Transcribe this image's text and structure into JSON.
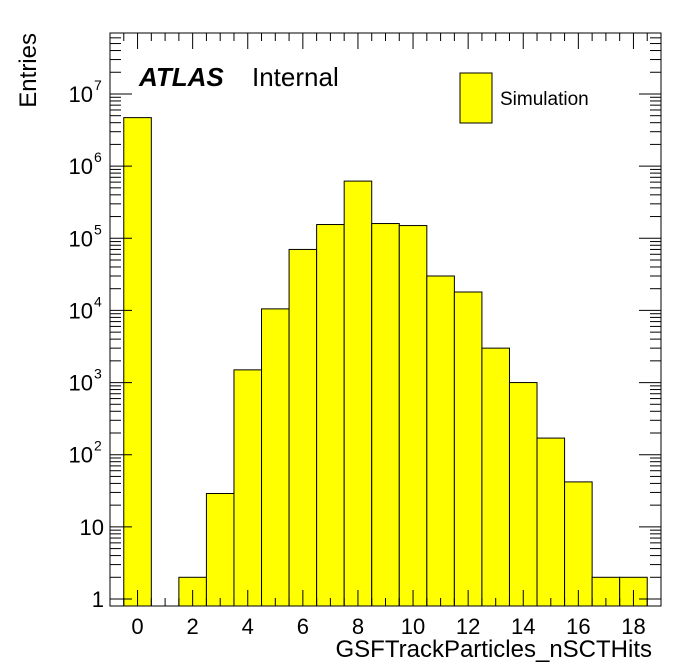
{
  "chart_data": {
    "type": "bar",
    "style": "histogram",
    "xlabel": "GSFTrackParticles_nSCTHits",
    "ylabel": "Entries",
    "xlim": [
      -1,
      19
    ],
    "ylim": [
      0.8,
      70000000
    ],
    "yscale": "log",
    "grid": false,
    "fill_color": "#ffff00",
    "edge_color": "#000000",
    "x_ticks": [
      {
        "value": 0,
        "label": "0"
      },
      {
        "value": 2,
        "label": "2"
      },
      {
        "value": 4,
        "label": "4"
      },
      {
        "value": 6,
        "label": "6"
      },
      {
        "value": 8,
        "label": "8"
      },
      {
        "value": 10,
        "label": "10"
      },
      {
        "value": 12,
        "label": "12"
      },
      {
        "value": 14,
        "label": "14"
      },
      {
        "value": 16,
        "label": "16"
      },
      {
        "value": 18,
        "label": "18"
      }
    ],
    "y_ticks": [
      {
        "value": 1,
        "base": "1",
        "exp": ""
      },
      {
        "value": 10,
        "base": "10",
        "exp": ""
      },
      {
        "value": 100,
        "base": "10",
        "exp": "2"
      },
      {
        "value": 1000,
        "base": "10",
        "exp": "3"
      },
      {
        "value": 10000,
        "base": "10",
        "exp": "4"
      },
      {
        "value": 100000,
        "base": "10",
        "exp": "5"
      },
      {
        "value": 1000000,
        "base": "10",
        "exp": "6"
      },
      {
        "value": 10000000,
        "base": "10",
        "exp": "7"
      }
    ],
    "bins": [
      {
        "x": 0,
        "value": 4700000
      },
      {
        "x": 1,
        "value": 0
      },
      {
        "x": 2,
        "value": 2
      },
      {
        "x": 3,
        "value": 29
      },
      {
        "x": 4,
        "value": 1500
      },
      {
        "x": 5,
        "value": 10500
      },
      {
        "x": 6,
        "value": 70000
      },
      {
        "x": 7,
        "value": 155000
      },
      {
        "x": 8,
        "value": 620000
      },
      {
        "x": 9,
        "value": 160000
      },
      {
        "x": 10,
        "value": 150000
      },
      {
        "x": 11,
        "value": 30000
      },
      {
        "x": 12,
        "value": 18000
      },
      {
        "x": 13,
        "value": 3000
      },
      {
        "x": 14,
        "value": 1000
      },
      {
        "x": 15,
        "value": 170
      },
      {
        "x": 16,
        "value": 42
      },
      {
        "x": 17,
        "value": 2
      },
      {
        "x": 18,
        "value": 2
      }
    ],
    "legend": {
      "entries": [
        "Simulation"
      ],
      "position": "top-right"
    },
    "annotations": {
      "atlas": "ATLAS",
      "status": "Internal"
    }
  }
}
